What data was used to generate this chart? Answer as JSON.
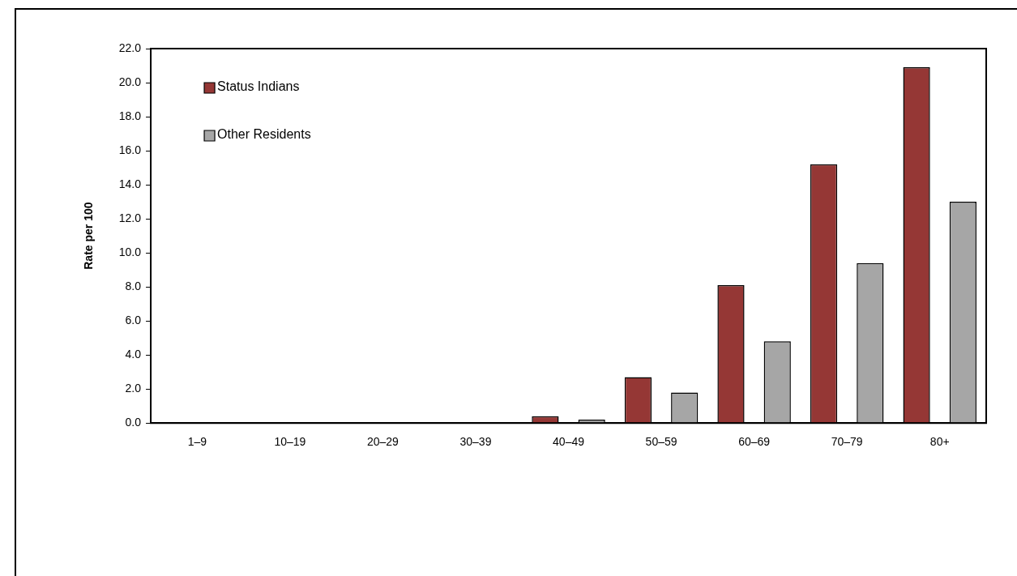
{
  "chart_data": {
    "type": "bar",
    "ylabel": "Rate per 100",
    "categories": [
      "1–9",
      "10–19",
      "20–29",
      "30–39",
      "40–49",
      "50–59",
      "60–69",
      "70–79",
      "80+"
    ],
    "series": [
      {
        "name": "Status Indians",
        "color": "#953735",
        "values": [
          0,
          0,
          0,
          0,
          0.4,
          2.7,
          8.1,
          15.2,
          20.9
        ]
      },
      {
        "name": "Other Residents",
        "color": "#a6a6a6",
        "values": [
          0,
          0,
          0,
          0,
          0.2,
          1.8,
          4.8,
          9.4,
          13.0
        ]
      }
    ],
    "ylim": [
      0,
      22
    ],
    "yticks": [
      {
        "value": 0,
        "label": "0.0"
      },
      {
        "value": 2,
        "label": "2.0"
      },
      {
        "value": 4,
        "label": "4.0"
      },
      {
        "value": 6,
        "label": "6.0"
      },
      {
        "value": 8,
        "label": "8.0"
      },
      {
        "value": 10,
        "label": "10.0"
      },
      {
        "value": 12,
        "label": "12.0"
      },
      {
        "value": 14,
        "label": "14.0"
      },
      {
        "value": 16,
        "label": "16.0"
      },
      {
        "value": 18,
        "label": "18.0"
      },
      {
        "value": 20,
        "label": "20.0"
      },
      {
        "value": 22,
        "label": "22.0"
      }
    ],
    "grid": false,
    "legend": "top left"
  }
}
